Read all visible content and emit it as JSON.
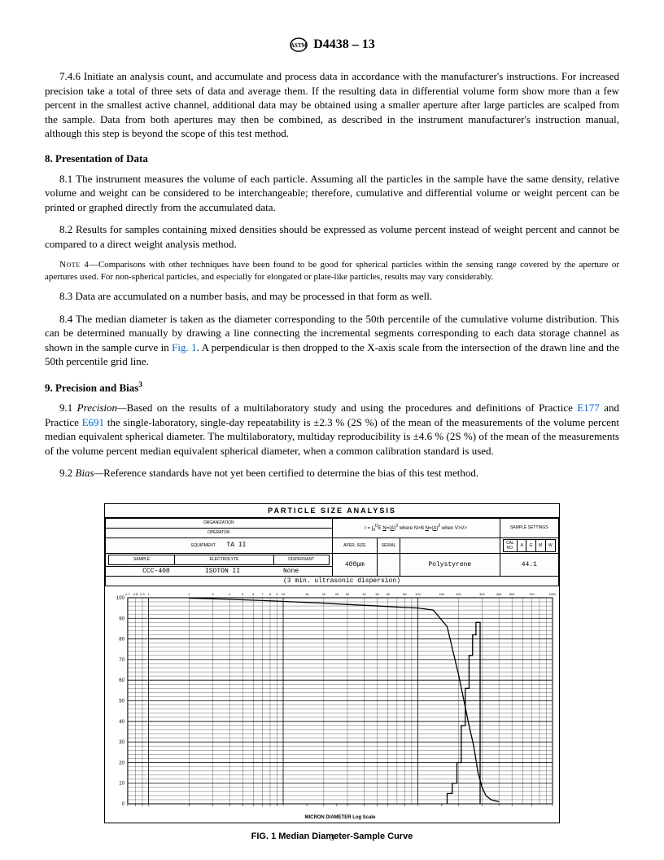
{
  "header": {
    "designation": "D4438 – 13"
  },
  "para_746": "7.4.6 Initiate an analysis count, and accumulate and process data in accordance with the manufacturer's instructions. For increased precision take a total of three sets of data and average them. If the resulting data in differential volume form show more than a few percent in the smallest active channel, additional data may be obtained using a smaller aperture after large particles are scalped from the sample. Data from both apertures may then be combined, as described in the instrument manufacturer's instruction manual, although this step is beyond the scope of this test method.",
  "section8": {
    "title": "8.  Presentation of Data",
    "p81": "8.1 The instrument measures the volume of each particle. Assuming all the particles in the sample have the same density, relative volume and weight can be considered to be interchangeable; therefore, cumulative and differential volume or weight percent can be printed or graphed directly from the accumulated data.",
    "p82": "8.2 Results for samples containing mixed densities should be expressed as volume percent instead of weight percent and cannot be compared to a direct weight analysis method.",
    "note4_label": "Note 4—",
    "note4": "Comparisons with other techniques have been found to be good for spherical particles within the sensing range covered by the aperture or apertures used. For non-spherical particles, and especially for elongated or plate-like particles, results may vary considerably.",
    "p83": "8.3 Data are accumulated on a number basis, and may be processed in that form as well.",
    "p84_a": "8.4 The median diameter is taken as the diameter corresponding to the 50th percentile of the cumulative volume distribution. This can be determined manually by drawing a line connecting the incremental segments corresponding to each data storage channel as shown in the sample curve in ",
    "p84_link": "Fig. 1",
    "p84_b": ". A perpendicular is then dropped to the X-axis scale from the intersection of the drawn line and the 50th percentile grid line."
  },
  "section9": {
    "title_a": "9.  Precision and Bias",
    "title_sup": "3",
    "p91_a": "9.1 ",
    "p91_label": "Precision—",
    "p91_b": "Based on the results of a multilaboratory study and using the procedures and definitions of Practice ",
    "p91_link1": "E177",
    "p91_c": " and Practice ",
    "p91_link2": "E691",
    "p91_d": " the single-laboratory, single-day repeatability is ±2.3 % (2S %) of the mean of the measurements of the volume percent median equivalent spherical diameter. The multilaboratory, multiday reproducibility is ±4.6 % (2S %) of the mean of the measurements of the volume percent median equivalent spherical diameter, when a common calibration standard is used.",
    "p92_a": "9.2 ",
    "p92_label": "Bias—",
    "p92_b": "Reference standards have not yet been certified to determine the bias of this test method."
  },
  "figure": {
    "title": "PARTICLE SIZE ANALYSIS",
    "caption": "FIG. 1  Median Diameter-Sample Curve",
    "header": {
      "equipment": "TA II",
      "sample": "CCC-408",
      "electrolyte": "ISOTON II",
      "dispersant": "None",
      "aper_size": "400μm",
      "material": "Polystyrene",
      "cal": "44.1",
      "note": "(3 min. ultrasonic dispersion)",
      "sample_settings": "SAMPLE SETTINGS"
    },
    "chart": {
      "bg_color": "#ffffff",
      "grid_color": "#000000",
      "grid_major_width": 0.8,
      "grid_minor_width": 0.3,
      "y_ticks": [
        0,
        10,
        20,
        30,
        40,
        50,
        60,
        70,
        80,
        90,
        100
      ],
      "x_scale": "log",
      "x_range": [
        0.7,
        1000
      ],
      "curve_points": [
        [
          2,
          99.8
        ],
        [
          3,
          99.5
        ],
        [
          5,
          99
        ],
        [
          8,
          98.5
        ],
        [
          12,
          98
        ],
        [
          18,
          97.5
        ],
        [
          25,
          97
        ],
        [
          35,
          96.5
        ],
        [
          50,
          96
        ],
        [
          70,
          95.5
        ],
        [
          100,
          95
        ],
        [
          130,
          94
        ],
        [
          165,
          86
        ],
        [
          200,
          63
        ],
        [
          220,
          50
        ],
        [
          240,
          38
        ],
        [
          260,
          28
        ],
        [
          280,
          15
        ],
        [
          300,
          8
        ],
        [
          320,
          4
        ],
        [
          350,
          2
        ],
        [
          400,
          1
        ]
      ],
      "step_points": [
        [
          165,
          0
        ],
        [
          165,
          5
        ],
        [
          180,
          5
        ],
        [
          180,
          10
        ],
        [
          195,
          10
        ],
        [
          195,
          20
        ],
        [
          210,
          20
        ],
        [
          210,
          38
        ],
        [
          225,
          38
        ],
        [
          225,
          56
        ],
        [
          240,
          56
        ],
        [
          240,
          72
        ],
        [
          255,
          72
        ],
        [
          255,
          82
        ],
        [
          270,
          82
        ],
        [
          270,
          88
        ],
        [
          290,
          88
        ],
        [
          290,
          0
        ]
      ],
      "axis_bottom_label": "MICRON DIAMETER Log Scale"
    }
  },
  "page_number": "3"
}
